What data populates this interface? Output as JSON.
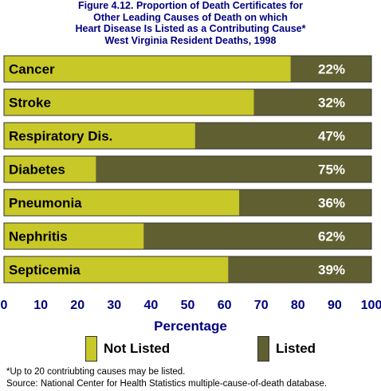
{
  "title_lines": [
    "Figure 4.12. Proportion of Death Certificates for",
    "Other Leading Causes of Death on which",
    "Heart Disease Is Listed as a Contributing Cause*",
    "West Virginia Resident Deaths, 1998"
  ],
  "colors": {
    "not_listed": "#c8c828",
    "listed": "#5f5f31",
    "axis_text": "#000080",
    "background": "#ffffff"
  },
  "chart_data": {
    "type": "bar",
    "orientation": "horizontal",
    "stacked": true,
    "categories": [
      "Cancer",
      "Stroke",
      "Respiratory Dis.",
      "Diabetes",
      "Pneumonia",
      "Nephritis",
      "Septicemia"
    ],
    "series": [
      {
        "name": "Not Listed",
        "values": [
          78,
          68,
          52,
          25,
          64,
          38,
          61
        ]
      },
      {
        "name": "Listed",
        "values": [
          22,
          32,
          47,
          75,
          36,
          62,
          39
        ]
      }
    ],
    "data_labels": [
      "22%",
      "32%",
      "47%",
      "75%",
      "36%",
      "62%",
      "39%"
    ],
    "xlabel": "Percentage",
    "xlim": [
      0,
      100
    ],
    "xticks": [
      0,
      10,
      20,
      30,
      40,
      50,
      60,
      70,
      80,
      90,
      100
    ],
    "grid": false,
    "legend_position": "bottom"
  },
  "legend": [
    {
      "label": "Not Listed"
    },
    {
      "label": "Listed"
    }
  ],
  "footnotes": [
    "*Up to 20 contriubting causes may be listed.",
    "Source: National Center for Health Statistics multiple-cause-of-death database."
  ]
}
